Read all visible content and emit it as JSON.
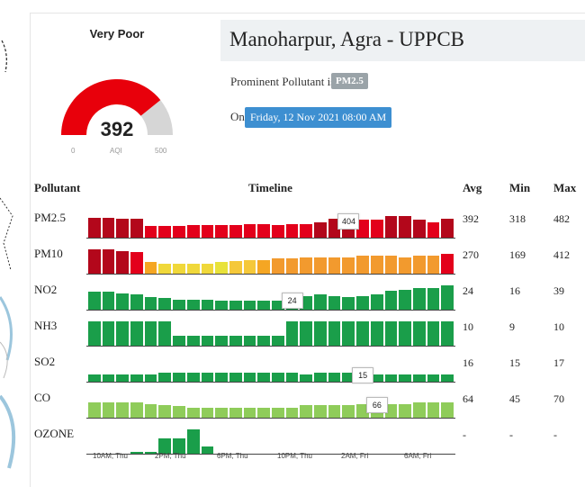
{
  "aqi": {
    "category": "Very Poor",
    "value": "392",
    "unit": "AQI",
    "min": "0",
    "max": "500",
    "fraction": 0.784,
    "color": "#e8000b"
  },
  "station": {
    "name": "Manoharpur, Agra - UPPCB",
    "prominent_label": "Prominent Pollutant is",
    "prominent_value": "PM2.5",
    "on_label": "On",
    "date": "Friday, 12 Nov 2021 08:00 AM"
  },
  "table": {
    "headers": {
      "pollutant": "Pollutant",
      "timeline": "Timeline",
      "avg": "Avg",
      "min": "Min",
      "max": "Max"
    },
    "x_ticks": [
      "10AM, Thu",
      "2PM, Thu",
      "6PM, Thu",
      "10PM, Thu",
      "2AM, Fri",
      "6AM, Fri"
    ],
    "rows": [
      {
        "name": "PM2.5",
        "avg": "392",
        "min": "318",
        "max": "482",
        "tooltip": "404",
        "tooltip_index": 18,
        "colors": [
          "#b3071b",
          "#b3071b",
          "#b3071b",
          "#b3071b",
          "#e3001b",
          "#e3001b",
          "#e3001b",
          "#e3001b",
          "#e3001b",
          "#e3001b",
          "#e3001b",
          "#e3001b",
          "#e3001b",
          "#e3001b",
          "#e3001b",
          "#e3001b",
          "#b3071b",
          "#b3071b",
          "#b3071b",
          "#e3001b",
          "#e3001b",
          "#b3071b",
          "#b3071b",
          "#b3071b",
          "#e3001b",
          "#b3071b"
        ],
        "values": [
          0.8,
          0.8,
          0.75,
          0.75,
          0.45,
          0.45,
          0.45,
          0.5,
          0.5,
          0.5,
          0.5,
          0.55,
          0.55,
          0.5,
          0.55,
          0.55,
          0.6,
          0.75,
          0.75,
          0.7,
          0.7,
          0.85,
          0.85,
          0.7,
          0.6,
          0.75
        ]
      },
      {
        "name": "PM10",
        "avg": "270",
        "min": "169",
        "max": "412",
        "colors": [
          "#b3071b",
          "#b3071b",
          "#b3071b",
          "#e3001b",
          "#f5a623",
          "#f0d83a",
          "#f0d83a",
          "#f0d83a",
          "#f0d83a",
          "#e8e23a",
          "#f5c83a",
          "#f5c83a",
          "#f5a623",
          "#f29a2e",
          "#f29a2e",
          "#f29a2e",
          "#f29a2e",
          "#f29a2e",
          "#f29a2e",
          "#f29a2e",
          "#f29a2e",
          "#f29a2e",
          "#f29a2e",
          "#f29a2e",
          "#f29a2e",
          "#e3001b"
        ],
        "values": [
          0.95,
          0.95,
          0.9,
          0.85,
          0.45,
          0.4,
          0.4,
          0.4,
          0.4,
          0.45,
          0.5,
          0.55,
          0.55,
          0.6,
          0.6,
          0.65,
          0.65,
          0.65,
          0.65,
          0.7,
          0.7,
          0.7,
          0.65,
          0.7,
          0.7,
          0.8
        ]
      },
      {
        "name": "NO2",
        "avg": "24",
        "min": "16",
        "max": "39",
        "tooltip": "24",
        "tooltip_index": 14,
        "colors": [
          "#1a9e4a",
          "#1a9e4a",
          "#1a9e4a",
          "#1a9e4a",
          "#1a9e4a",
          "#1a9e4a",
          "#1a9e4a",
          "#1a9e4a",
          "#1a9e4a",
          "#1a9e4a",
          "#1a9e4a",
          "#1a9e4a",
          "#1a9e4a",
          "#1a9e4a",
          "#1a9e4a",
          "#1a9e4a",
          "#1a9e4a",
          "#1a9e4a",
          "#1a9e4a",
          "#1a9e4a",
          "#1a9e4a",
          "#1a9e4a",
          "#1a9e4a",
          "#1a9e4a",
          "#1a9e4a",
          "#1a9e4a"
        ],
        "values": [
          0.7,
          0.7,
          0.65,
          0.6,
          0.5,
          0.45,
          0.4,
          0.4,
          0.4,
          0.35,
          0.35,
          0.35,
          0.35,
          0.35,
          0.45,
          0.55,
          0.6,
          0.55,
          0.5,
          0.55,
          0.6,
          0.75,
          0.8,
          0.85,
          0.85,
          0.95
        ]
      },
      {
        "name": "NH3",
        "avg": "10",
        "min": "9",
        "max": "10",
        "colors": [
          "#1a9e4a",
          "#1a9e4a",
          "#1a9e4a",
          "#1a9e4a",
          "#1a9e4a",
          "#1a9e4a",
          "#1a9e4a",
          "#1a9e4a",
          "#1a9e4a",
          "#1a9e4a",
          "#1a9e4a",
          "#1a9e4a",
          "#1a9e4a",
          "#1a9e4a",
          "#1a9e4a",
          "#1a9e4a",
          "#1a9e4a",
          "#1a9e4a",
          "#1a9e4a",
          "#1a9e4a",
          "#1a9e4a",
          "#1a9e4a",
          "#1a9e4a",
          "#1a9e4a",
          "#1a9e4a",
          "#1a9e4a"
        ],
        "values": [
          0.95,
          0.95,
          0.95,
          0.95,
          0.95,
          0.95,
          0.4,
          0.4,
          0.4,
          0.4,
          0.4,
          0.4,
          0.4,
          0.4,
          0.95,
          0.95,
          0.95,
          0.95,
          0.95,
          0.95,
          0.95,
          0.95,
          0.95,
          0.95,
          0.95,
          0.95
        ]
      },
      {
        "name": "SO2",
        "avg": "16",
        "min": "15",
        "max": "17",
        "tooltip": "15",
        "tooltip_index": 19,
        "colors": [
          "#1a9e4a",
          "#1a9e4a",
          "#1a9e4a",
          "#1a9e4a",
          "#1a9e4a",
          "#1a9e4a",
          "#1a9e4a",
          "#1a9e4a",
          "#1a9e4a",
          "#1a9e4a",
          "#1a9e4a",
          "#1a9e4a",
          "#1a9e4a",
          "#1a9e4a",
          "#1a9e4a",
          "#1a9e4a",
          "#1a9e4a",
          "#1a9e4a",
          "#1a9e4a",
          "#1a9e4a",
          "#1a9e4a",
          "#1a9e4a",
          "#1a9e4a",
          "#1a9e4a",
          "#1a9e4a",
          "#1a9e4a"
        ],
        "values": [
          0.3,
          0.3,
          0.3,
          0.3,
          0.3,
          0.35,
          0.35,
          0.35,
          0.35,
          0.35,
          0.35,
          0.35,
          0.35,
          0.35,
          0.35,
          0.3,
          0.35,
          0.35,
          0.35,
          0.35,
          0.3,
          0.3,
          0.3,
          0.3,
          0.3,
          0.3
        ]
      },
      {
        "name": "CO",
        "avg": "64",
        "min": "45",
        "max": "70",
        "tooltip": "66",
        "tooltip_index": 20,
        "colors": [
          "#8fcc5a",
          "#8fcc5a",
          "#8fcc5a",
          "#8fcc5a",
          "#8fcc5a",
          "#8fcc5a",
          "#8fcc5a",
          "#8fcc5a",
          "#8fcc5a",
          "#8fcc5a",
          "#8fcc5a",
          "#8fcc5a",
          "#8fcc5a",
          "#8fcc5a",
          "#8fcc5a",
          "#8fcc5a",
          "#8fcc5a",
          "#8fcc5a",
          "#8fcc5a",
          "#8fcc5a",
          "#8fcc5a",
          "#8fcc5a",
          "#8fcc5a",
          "#8fcc5a",
          "#8fcc5a",
          "#8fcc5a"
        ],
        "values": [
          0.6,
          0.6,
          0.6,
          0.6,
          0.55,
          0.5,
          0.45,
          0.4,
          0.4,
          0.4,
          0.4,
          0.4,
          0.4,
          0.4,
          0.4,
          0.5,
          0.5,
          0.5,
          0.5,
          0.55,
          0.6,
          0.55,
          0.55,
          0.6,
          0.6,
          0.6
        ]
      },
      {
        "name": "OZONE",
        "avg": "-",
        "min": "-",
        "max": "-",
        "colors": [
          "#1a9e4a",
          "#1a9e4a",
          "#1a9e4a",
          "#1a9e4a",
          "#1a9e4a",
          "#1a9e4a",
          "#1a9e4a",
          "#1a9e4a",
          "#1a9e4a",
          "#1a9e4a",
          "#1a9e4a",
          "#1a9e4a",
          "#1a9e4a",
          "#1a9e4a",
          "#1a9e4a",
          "#1a9e4a",
          "#1a9e4a",
          "#1a9e4a",
          "#1a9e4a",
          "#1a9e4a",
          "#1a9e4a",
          "#1a9e4a",
          "#1a9e4a",
          "#1a9e4a",
          "#1a9e4a",
          "#1a9e4a"
        ],
        "values": [
          0,
          0,
          0,
          0.03,
          0.05,
          0.6,
          0.6,
          0.95,
          0.3,
          0,
          0,
          0,
          0,
          0,
          0,
          0,
          0,
          0,
          0,
          0,
          0,
          0,
          0,
          0,
          0,
          0
        ]
      }
    ]
  }
}
